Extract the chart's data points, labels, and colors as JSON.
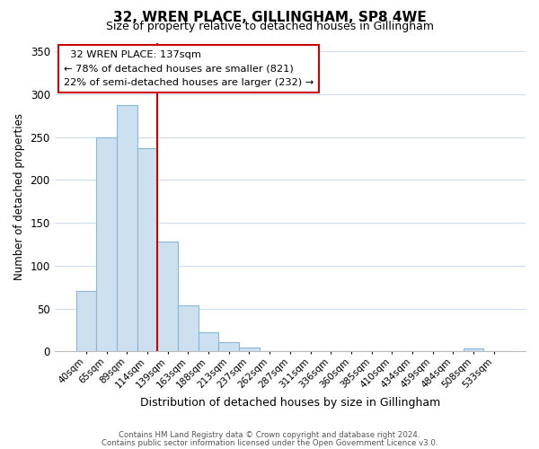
{
  "title": "32, WREN PLACE, GILLINGHAM, SP8 4WE",
  "subtitle": "Size of property relative to detached houses in Gillingham",
  "xlabel": "Distribution of detached houses by size in Gillingham",
  "ylabel": "Number of detached properties",
  "bar_labels": [
    "40sqm",
    "65sqm",
    "89sqm",
    "114sqm",
    "139sqm",
    "163sqm",
    "188sqm",
    "213sqm",
    "237sqm",
    "262sqm",
    "287sqm",
    "311sqm",
    "336sqm",
    "360sqm",
    "385sqm",
    "410sqm",
    "434sqm",
    "459sqm",
    "484sqm",
    "508sqm",
    "533sqm"
  ],
  "bar_values": [
    70,
    250,
    287,
    237,
    128,
    54,
    22,
    11,
    4,
    0,
    0,
    0,
    0,
    0,
    0,
    0,
    0,
    0,
    0,
    3,
    0
  ],
  "bar_color": "#cce0f0",
  "bar_edge_color": "#88b8d8",
  "vline_color": "#cc0000",
  "vline_x_index": 3.5,
  "annotation_title": "32 WREN PLACE: 137sqm",
  "annotation_line1": "← 78% of detached houses are smaller (821)",
  "annotation_line2": "22% of semi-detached houses are larger (232) →",
  "annotation_box_edge": "#cc0000",
  "ylim": [
    0,
    360
  ],
  "yticks": [
    0,
    50,
    100,
    150,
    200,
    250,
    300,
    350
  ],
  "footer_line1": "Contains HM Land Registry data © Crown copyright and database right 2024.",
  "footer_line2": "Contains public sector information licensed under the Open Government Licence v3.0.",
  "background_color": "#ffffff",
  "grid_color": "#ccdcee"
}
